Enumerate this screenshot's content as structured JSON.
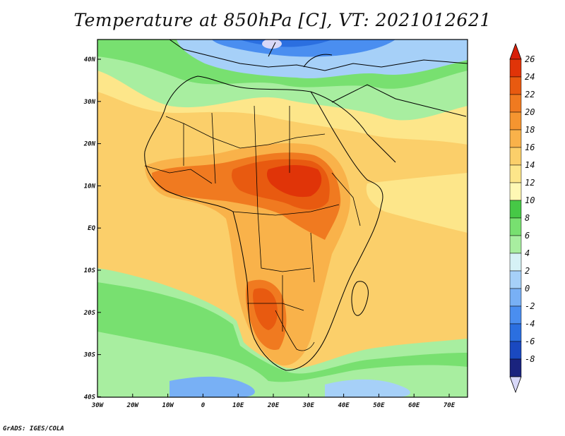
{
  "title": "Temperature at 850hPa [C], VT: 2021012621",
  "credit": "GrADS: IGES/COLA",
  "map": {
    "lon_labels": [
      "30W",
      "20W",
      "10W",
      "0",
      "10E",
      "20E",
      "30E",
      "40E",
      "50E",
      "60E",
      "70E"
    ],
    "lat_labels": [
      "40N",
      "30N",
      "20N",
      "10N",
      "EQ",
      "10S",
      "20S",
      "30S",
      "40S"
    ]
  },
  "colorbar": {
    "labels": [
      "26",
      "24",
      "22",
      "20",
      "18",
      "16",
      "14",
      "12",
      "10",
      "8",
      "6",
      "4",
      "2",
      "0",
      "-2",
      "-4",
      "-6",
      "-8"
    ],
    "colors": [
      "#d8d8f8",
      "#1a237e",
      "#1a49c0",
      "#2b6fe0",
      "#4a8ef0",
      "#78b0f5",
      "#a6d0f8",
      "#d6f2f6",
      "#a8eea0",
      "#78e070",
      "#46c846",
      "#fff8b4",
      "#fde68a",
      "#fbcf6a",
      "#f9b24a",
      "#f59530",
      "#f07a20",
      "#e85a10",
      "#e03408",
      "#d8200a"
    ]
  }
}
